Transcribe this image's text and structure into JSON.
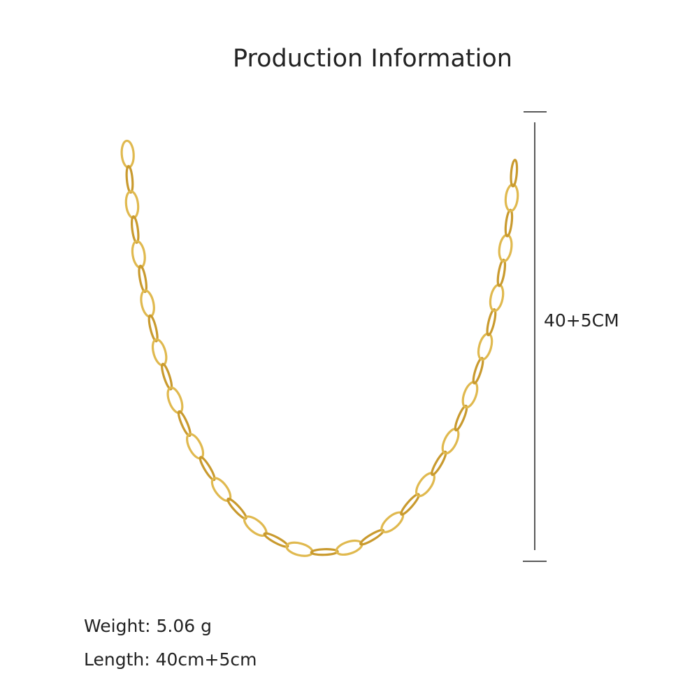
{
  "header": {
    "title": "Production Information"
  },
  "dimension": {
    "label": "40+5CM"
  },
  "specs": {
    "weight": "Weight: 5.06 g",
    "length": "Length: 40cm+5cm"
  }
}
